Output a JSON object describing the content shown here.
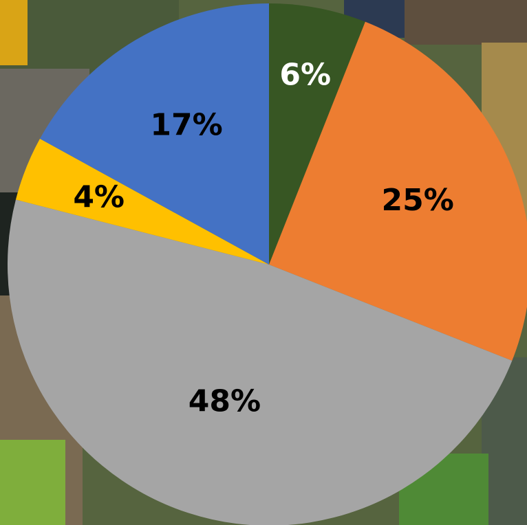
{
  "chart_data": {
    "type": "pie",
    "start_angle_deg": 0,
    "direction": "clockwise",
    "slices": [
      {
        "label": "6%",
        "value": 6,
        "color": "#375623",
        "label_color": "#ffffff"
      },
      {
        "label": "25%",
        "value": 25,
        "color": "#ed7d31",
        "label_color": "#000000"
      },
      {
        "label": "48%",
        "value": 48,
        "color": "#a5a5a5",
        "label_color": "#000000"
      },
      {
        "label": "4%",
        "value": 4,
        "color": "#ffc000",
        "label_color": "#000000"
      },
      {
        "label": "17%",
        "value": 17,
        "color": "#4472c4",
        "label_color": "#000000"
      }
    ],
    "legend": "none",
    "background": "photo-collage"
  }
}
